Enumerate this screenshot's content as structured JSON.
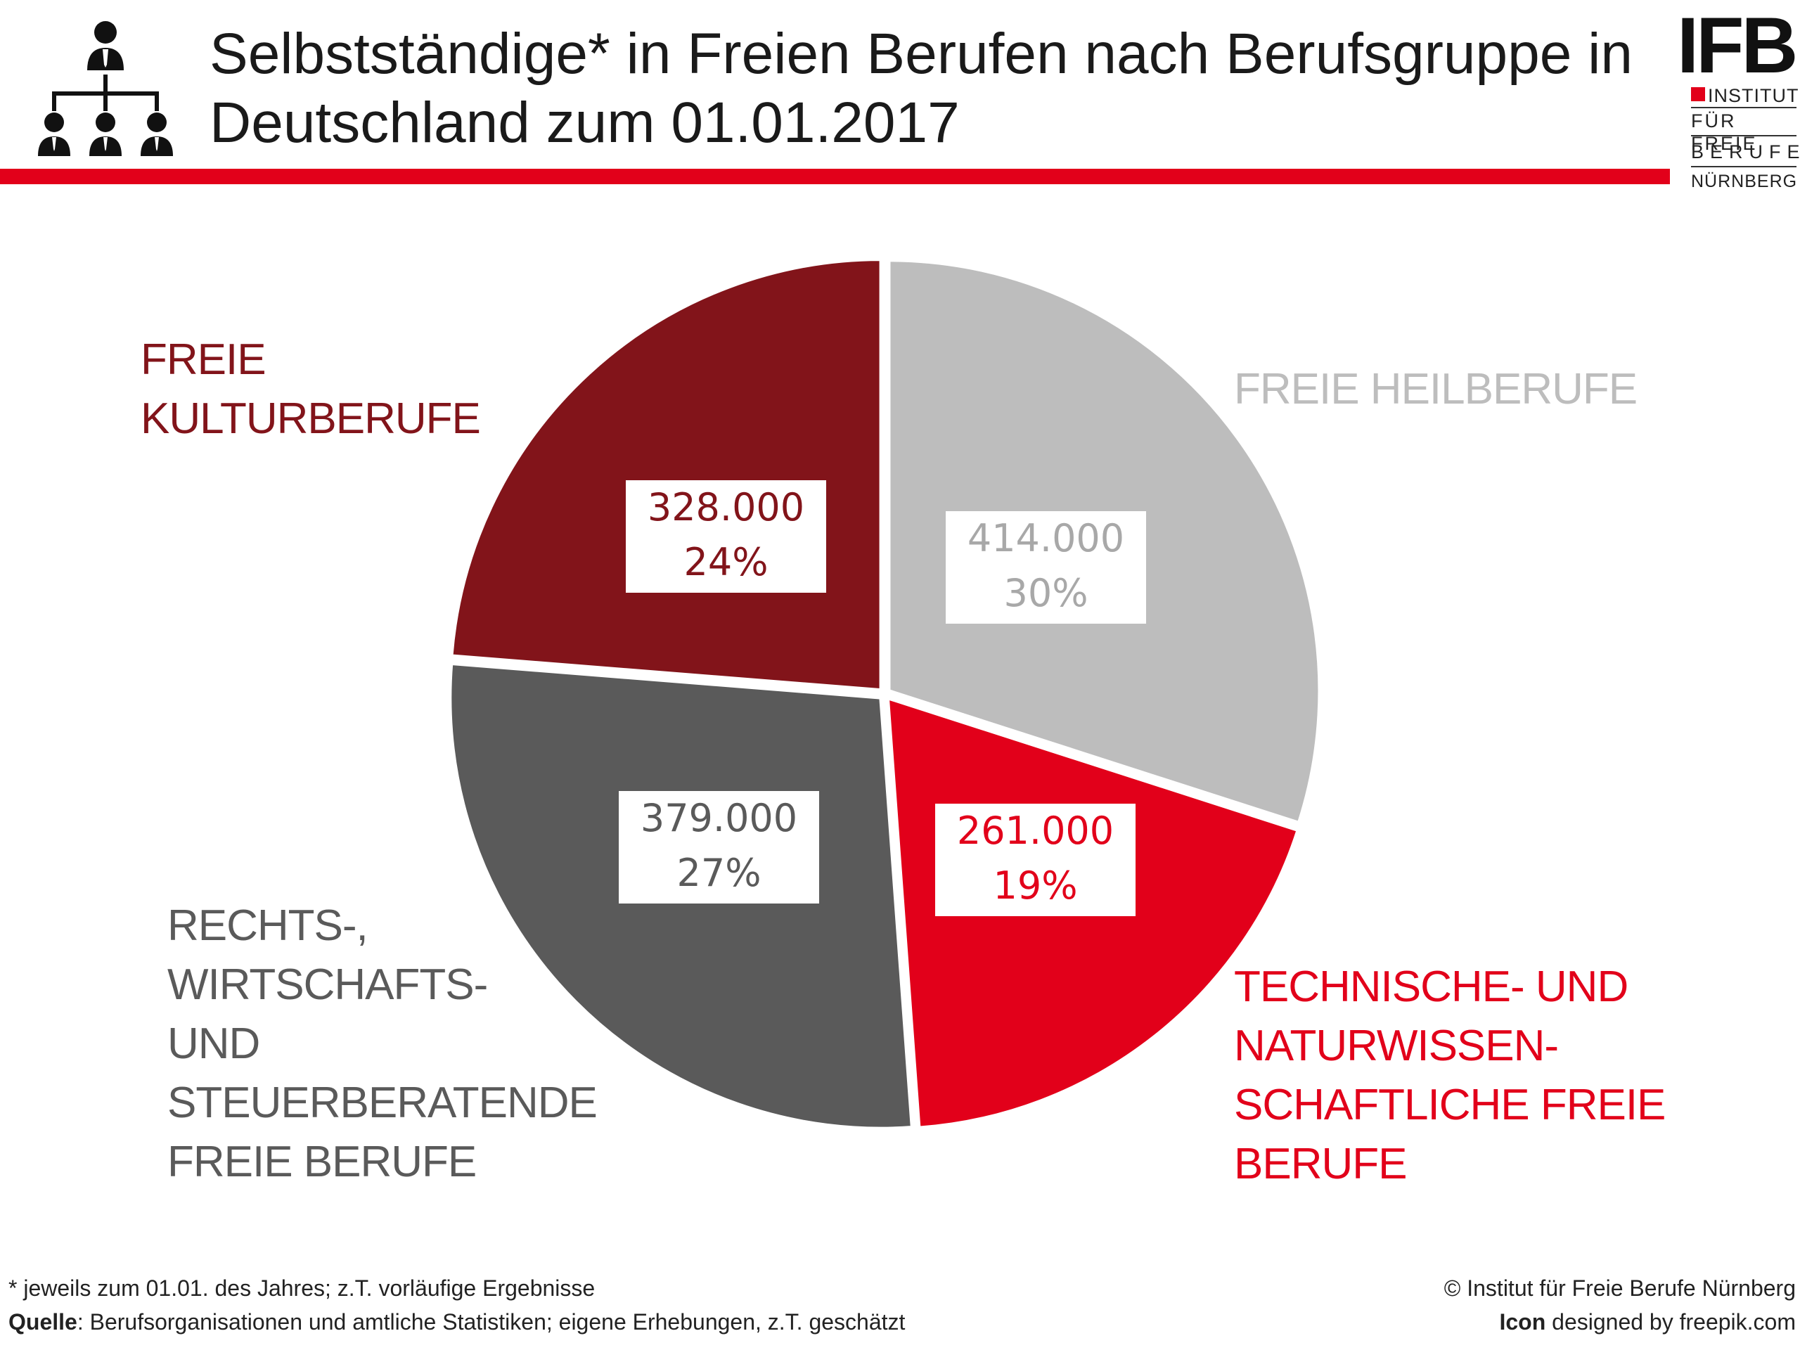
{
  "header": {
    "title": "Selbstständige* in Freien Berufen nach Berufsgruppe in Deutschland zum 01.01.2017",
    "icon": "organization-chart-icon"
  },
  "logo": {
    "mark": "IFB",
    "lines": [
      "INSTITUT",
      "FÜR FREIE",
      "BERUFE",
      "NÜRNBERG"
    ]
  },
  "colors": {
    "accent": "#e2001a",
    "kultur": "#82141a",
    "heil": "#bdbdbd",
    "technik": "#e2001a",
    "recht": "#5a5a5a"
  },
  "chart_data": {
    "type": "pie",
    "title": "Selbstständige* in Freien Berufen nach Berufsgruppe in Deutschland zum 01.01.2017",
    "slices": [
      {
        "label": "FREIE HEILBERUFE",
        "value": 414000,
        "value_label": "414.000",
        "percent_label": "30%",
        "color": "#bdbdbd"
      },
      {
        "label": "TECHNISCHE- UND NATURWISSEN-SCHAFTLICHE FREIE BERUFE",
        "value": 261000,
        "value_label": "261.000",
        "percent_label": "19%",
        "color": "#e2001a"
      },
      {
        "label": "RECHTS-, WIRTSCHAFTS- UND STEUERBERATENDE FREIE BERUFE",
        "value": 379000,
        "value_label": "379.000",
        "percent_label": "27%",
        "color": "#5a5a5a"
      },
      {
        "label": "FREIE KULTURBERUFE",
        "value": 328000,
        "value_label": "328.000",
        "percent_label": "24%",
        "color": "#82141a"
      }
    ],
    "start": "12 o'clock",
    "direction": "clockwise",
    "legend": "none (direct labels)"
  },
  "labels": {
    "heil": [
      "FREIE HEILBERUFE"
    ],
    "technik": [
      "TECHNISCHE- UND",
      "NATURWISSEN-",
      "SCHAFTLICHE FREIE",
      "BERUFE"
    ],
    "recht": [
      "RECHTS-,",
      "WIRTSCHAFTS-",
      "UND",
      "STEUERBERATENDE",
      "FREIE BERUFE"
    ],
    "kultur": [
      "FREIE",
      "KULTURBERUFE"
    ]
  },
  "footer": {
    "note": "* jeweils zum 01.01. des Jahres; z.T. vorläufige Ergebnisse",
    "source_label": "Quelle",
    "source_text": ": Berufsorganisationen und amtliche Statistiken; eigene Erhebungen, z.T. geschätzt",
    "copyright": "© Institut für Freie Berufe Nürnberg",
    "icon_credit_label": "Icon",
    "icon_credit_text": " designed by freepik.com"
  }
}
